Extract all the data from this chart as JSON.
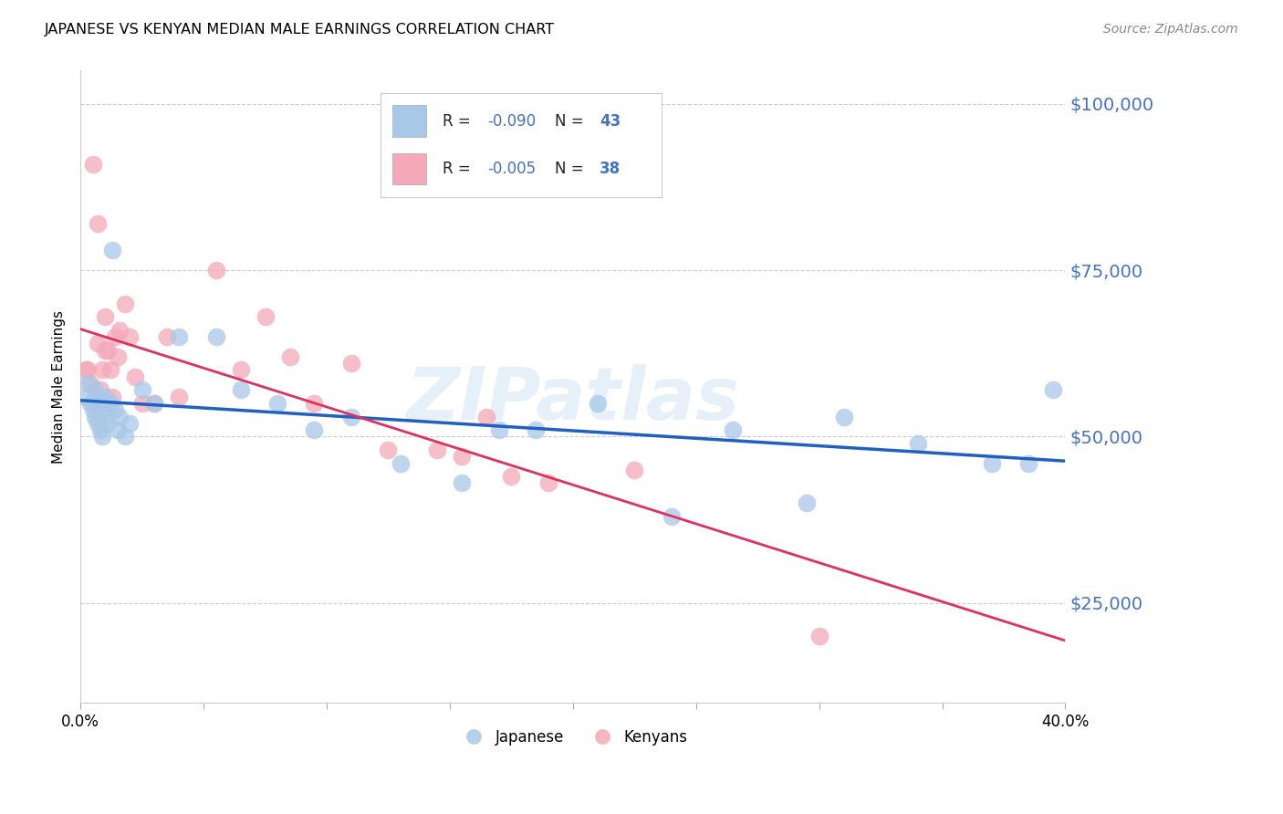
{
  "title": "JAPANESE VS KENYAN MEDIAN MALE EARNINGS CORRELATION CHART",
  "source": "Source: ZipAtlas.com",
  "ylabel": "Median Male Earnings",
  "watermark": "ZIPatlas",
  "xlim": [
    0.0,
    0.4
  ],
  "ylim": [
    10000,
    105000
  ],
  "yticks": [
    25000,
    50000,
    75000,
    100000
  ],
  "ytick_labels": [
    "$25,000",
    "$50,000",
    "$75,000",
    "$100,000"
  ],
  "xticks": [
    0.0,
    0.05,
    0.1,
    0.15,
    0.2,
    0.25,
    0.3,
    0.35,
    0.4
  ],
  "blue_color": "#a8c8e8",
  "pink_color": "#f4a8b8",
  "blue_line_color": "#2060c0",
  "pink_line_color": "#e03060",
  "axis_color": "#4472c4",
  "background_color": "#ffffff",
  "legend_r1": "R = ",
  "legend_v1": "-0.090",
  "legend_n1": "N = ",
  "legend_nv1": "43",
  "legend_r2": "R = ",
  "legend_v2": "-0.005",
  "legend_n2": "N = ",
  "legend_nv2": "38",
  "legend_labels_bottom": [
    "Japanese",
    "Kenyans"
  ],
  "japanese_x": [
    0.002,
    0.003,
    0.004,
    0.005,
    0.006,
    0.006,
    0.007,
    0.007,
    0.008,
    0.008,
    0.009,
    0.009,
    0.01,
    0.01,
    0.011,
    0.012,
    0.013,
    0.014,
    0.015,
    0.016,
    0.018,
    0.02,
    0.025,
    0.03,
    0.04,
    0.055,
    0.065,
    0.08,
    0.095,
    0.11,
    0.13,
    0.155,
    0.17,
    0.185,
    0.21,
    0.24,
    0.265,
    0.295,
    0.31,
    0.34,
    0.37,
    0.385,
    0.395
  ],
  "japanese_y": [
    56000,
    58000,
    55000,
    54000,
    53000,
    57000,
    52000,
    56000,
    51000,
    55000,
    50000,
    54000,
    53000,
    56000,
    52000,
    55000,
    78000,
    54000,
    51000,
    53000,
    50000,
    52000,
    57000,
    55000,
    65000,
    65000,
    57000,
    55000,
    51000,
    53000,
    46000,
    43000,
    51000,
    51000,
    55000,
    38000,
    51000,
    40000,
    53000,
    49000,
    46000,
    46000,
    57000
  ],
  "kenyan_x": [
    0.002,
    0.003,
    0.004,
    0.005,
    0.006,
    0.007,
    0.007,
    0.008,
    0.009,
    0.01,
    0.01,
    0.011,
    0.012,
    0.013,
    0.014,
    0.015,
    0.016,
    0.018,
    0.02,
    0.022,
    0.025,
    0.03,
    0.035,
    0.04,
    0.055,
    0.065,
    0.075,
    0.085,
    0.095,
    0.11,
    0.125,
    0.145,
    0.165,
    0.19,
    0.225,
    0.3,
    0.155,
    0.175
  ],
  "kenyan_y": [
    60000,
    60000,
    58000,
    91000,
    55000,
    82000,
    64000,
    57000,
    60000,
    63000,
    68000,
    63000,
    60000,
    56000,
    65000,
    62000,
    66000,
    70000,
    65000,
    59000,
    55000,
    55000,
    65000,
    56000,
    75000,
    60000,
    68000,
    62000,
    55000,
    61000,
    48000,
    48000,
    53000,
    43000,
    45000,
    20000,
    47000,
    44000
  ]
}
